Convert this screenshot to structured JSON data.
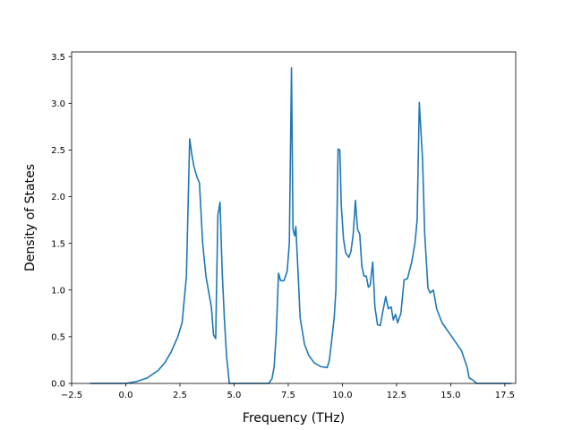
{
  "chart_data": {
    "type": "line",
    "title": "",
    "xlabel": "Frequency (THz)",
    "ylabel": "Density of States",
    "xlim": [
      -2.5,
      18.0
    ],
    "ylim": [
      0,
      3.55
    ],
    "xticks": [
      -2.5,
      0.0,
      2.5,
      5.0,
      7.5,
      10.0,
      12.5,
      15.0,
      17.5
    ],
    "xtick_labels": [
      "−2.5",
      "0.0",
      "2.5",
      "5.0",
      "7.5",
      "10.0",
      "12.5",
      "15.0",
      "17.5"
    ],
    "yticks": [
      0.0,
      0.5,
      1.0,
      1.5,
      2.0,
      2.5,
      3.0,
      3.5
    ],
    "ytick_labels": [
      "0.0",
      "0.5",
      "1.0",
      "1.5",
      "2.0",
      "2.5",
      "3.0",
      "3.5"
    ],
    "grid": false,
    "line_color": "#1f77b4",
    "series": [
      {
        "x": [
          -1.65,
          -1.0,
          0.0,
          0.5,
          1.0,
          1.5,
          1.8,
          2.1,
          2.4,
          2.6,
          2.8,
          2.95,
          3.05,
          3.15,
          3.3,
          3.4,
          3.55,
          3.7,
          3.85,
          3.95,
          4.05,
          4.15,
          4.25,
          4.35,
          4.45,
          4.55,
          4.65,
          4.78,
          6.6,
          6.75,
          6.85,
          6.95,
          7.05,
          7.15,
          7.3,
          7.45,
          7.55,
          7.65,
          7.72,
          7.8,
          7.85,
          7.95,
          8.05,
          8.25,
          8.45,
          8.7,
          9.0,
          9.3,
          9.4,
          9.5,
          9.62,
          9.7,
          9.8,
          9.88,
          9.95,
          10.05,
          10.15,
          10.3,
          10.4,
          10.5,
          10.6,
          10.7,
          10.8,
          10.9,
          11.0,
          11.1,
          11.2,
          11.28,
          11.4,
          11.5,
          11.62,
          11.75,
          11.85,
          12.0,
          12.12,
          12.25,
          12.35,
          12.45,
          12.55,
          12.7,
          12.85,
          13.0,
          13.2,
          13.35,
          13.45,
          13.55,
          13.7,
          13.8,
          13.95,
          14.05,
          14.2,
          14.35,
          14.6,
          14.9,
          15.2,
          15.5,
          15.6,
          15.75,
          15.85,
          16.0,
          16.2,
          16.5,
          17.0,
          17.5,
          17.8
        ],
        "y": [
          0.0,
          0.0,
          0.0,
          0.02,
          0.06,
          0.14,
          0.22,
          0.34,
          0.5,
          0.65,
          1.15,
          2.62,
          2.45,
          2.32,
          2.2,
          2.15,
          1.5,
          1.15,
          0.95,
          0.82,
          0.52,
          0.48,
          1.8,
          1.94,
          1.2,
          0.7,
          0.3,
          0.0,
          0.0,
          0.05,
          0.18,
          0.55,
          1.18,
          1.1,
          1.1,
          1.2,
          1.5,
          3.38,
          1.65,
          1.58,
          1.68,
          1.2,
          0.7,
          0.42,
          0.3,
          0.22,
          0.18,
          0.17,
          0.25,
          0.45,
          0.7,
          1.0,
          2.51,
          2.5,
          1.9,
          1.55,
          1.4,
          1.35,
          1.42,
          1.6,
          1.96,
          1.65,
          1.6,
          1.25,
          1.15,
          1.15,
          1.03,
          1.05,
          1.3,
          0.82,
          0.63,
          0.62,
          0.75,
          0.93,
          0.8,
          0.82,
          0.68,
          0.74,
          0.65,
          0.75,
          1.11,
          1.12,
          1.3,
          1.5,
          1.75,
          3.01,
          2.4,
          1.6,
          1.02,
          0.97,
          1.0,
          0.8,
          0.65,
          0.55,
          0.45,
          0.35,
          0.28,
          0.18,
          0.06,
          0.04,
          0.0,
          0.0,
          0.0,
          0.0,
          0.0
        ]
      }
    ]
  }
}
